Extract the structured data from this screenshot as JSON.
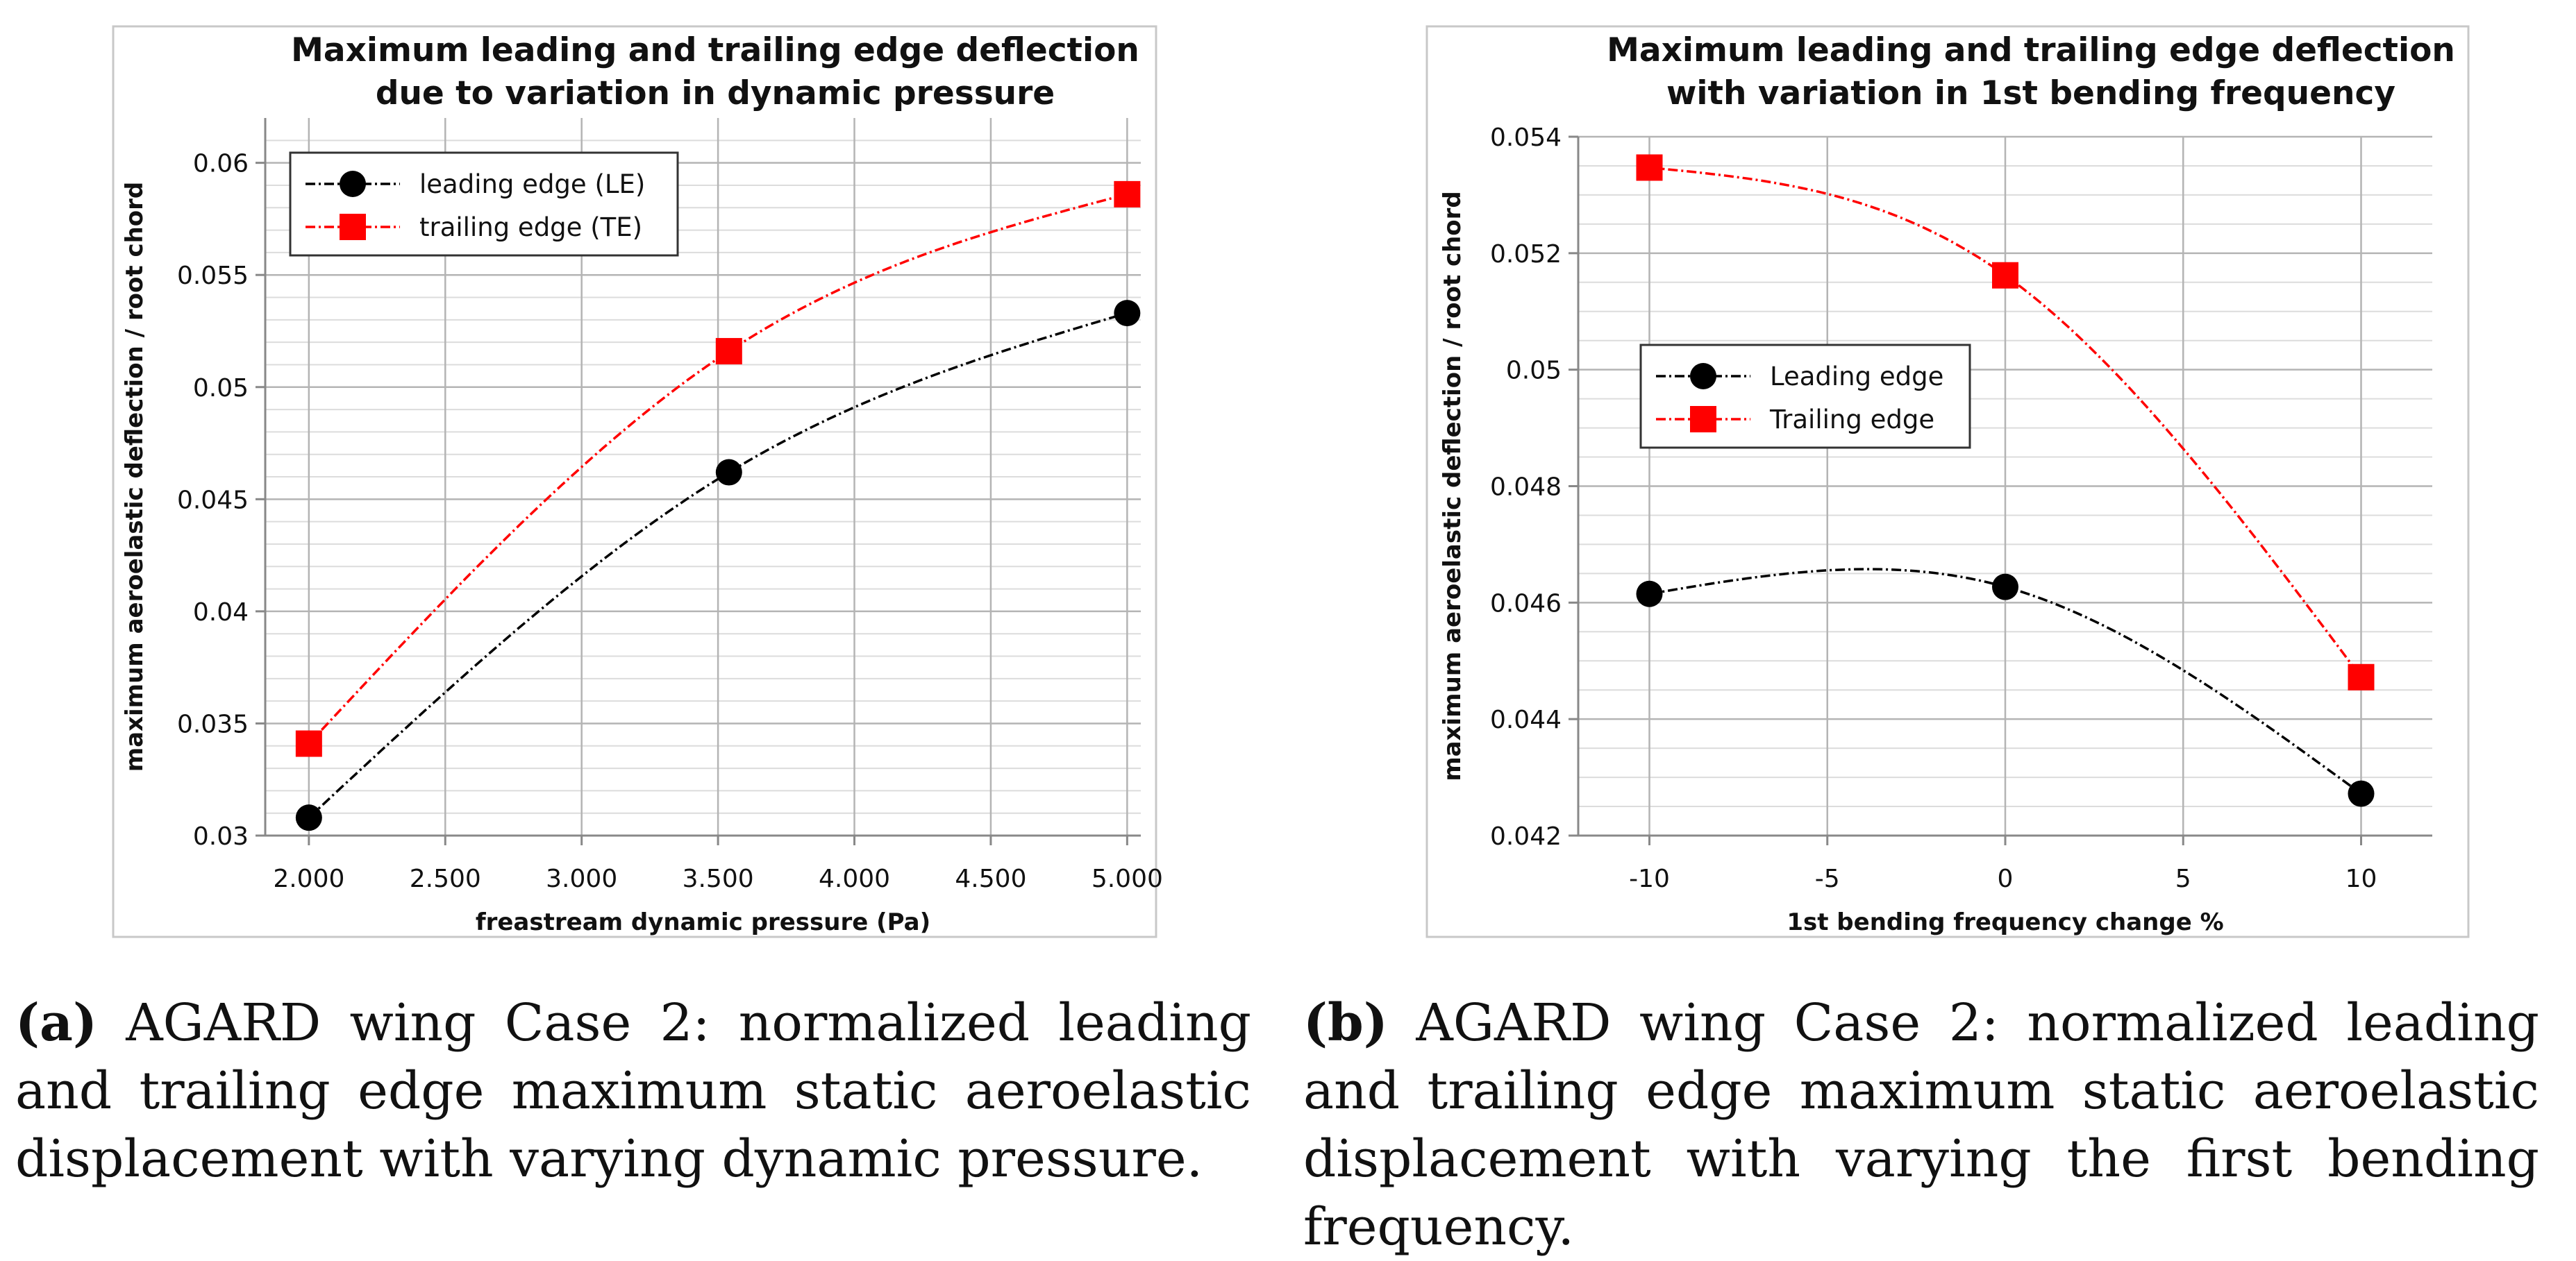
{
  "chart_data": [
    {
      "type": "line",
      "title_lines": [
        "Maximum leading and trailing edge deflection",
        "due to variation in dynamic pressure"
      ],
      "xlabel": "freastream dynamic pressure (Pa)",
      "ylabel": "maximum aeroelastic deflection / root chord",
      "xlim": [
        1840,
        5050
      ],
      "ylim": [
        0.03,
        0.062
      ],
      "x_ticks": [
        2000,
        2500,
        3000,
        3500,
        4000,
        4500,
        5000
      ],
      "x_tick_labels": [
        "2.000",
        "2.500",
        "3.000",
        "3.500",
        "4.000",
        "4.500",
        "5.000"
      ],
      "y_ticks": [
        0.03,
        0.035,
        0.04,
        0.045,
        0.05,
        0.055,
        0.06
      ],
      "y_tick_labels": [
        "0.03",
        "0.035",
        "0.04",
        "0.045",
        "0.05",
        "0.055",
        "0.06"
      ],
      "legend_position": "top-left",
      "series": [
        {
          "name": "leading edge (LE)",
          "color": "#000000",
          "marker": "circle",
          "x": [
            2000,
            3540,
            5000
          ],
          "values": [
            0.0308,
            0.0462,
            0.0533
          ]
        },
        {
          "name": "trailing edge (TE)",
          "color": "#ff0000",
          "marker": "square",
          "x": [
            2000,
            3540,
            5000
          ],
          "values": [
            0.0341,
            0.0516,
            0.0586
          ]
        }
      ]
    },
    {
      "type": "line",
      "title_lines": [
        "Maximum leading and trailing edge deflection",
        "with variation in 1st bending frequency"
      ],
      "xlabel": "1st bending frequency change %",
      "ylabel": "maximum aeroelastic deflection / root chord",
      "xlim": [
        -12,
        12
      ],
      "ylim": [
        0.042,
        0.054
      ],
      "x_ticks": [
        -10,
        -5,
        0,
        5,
        10
      ],
      "x_tick_labels": [
        "-10",
        "-5",
        "0",
        "5",
        "10"
      ],
      "y_ticks": [
        0.042,
        0.044,
        0.046,
        0.048,
        0.05,
        0.052,
        0.054
      ],
      "y_tick_labels": [
        "0.042",
        "0.044",
        "0.046",
        "0.048",
        "0.05",
        "0.052",
        "0.054"
      ],
      "legend_position": "center-left",
      "series": [
        {
          "name": "Leading edge",
          "color": "#000000",
          "marker": "circle",
          "x": [
            -10,
            0,
            10
          ],
          "values": [
            0.04615,
            0.04627,
            0.04272
          ]
        },
        {
          "name": "Trailing edge",
          "color": "#ff0000",
          "marker": "square",
          "x": [
            -10,
            0,
            10
          ],
          "values": [
            0.05347,
            0.05162,
            0.04472
          ]
        }
      ]
    }
  ],
  "captions": [
    {
      "tag": "(a)",
      "text": "AGARD wing Case 2: normalized leading and trailing edge maximum static aeroelastic displacement with varying dynamic pressure."
    },
    {
      "tag": "(b)",
      "text": "AGARD wing Case 2: normalized leading and trailing edge maximum static aeroelastic displacement with varying the first bending frequency."
    }
  ]
}
